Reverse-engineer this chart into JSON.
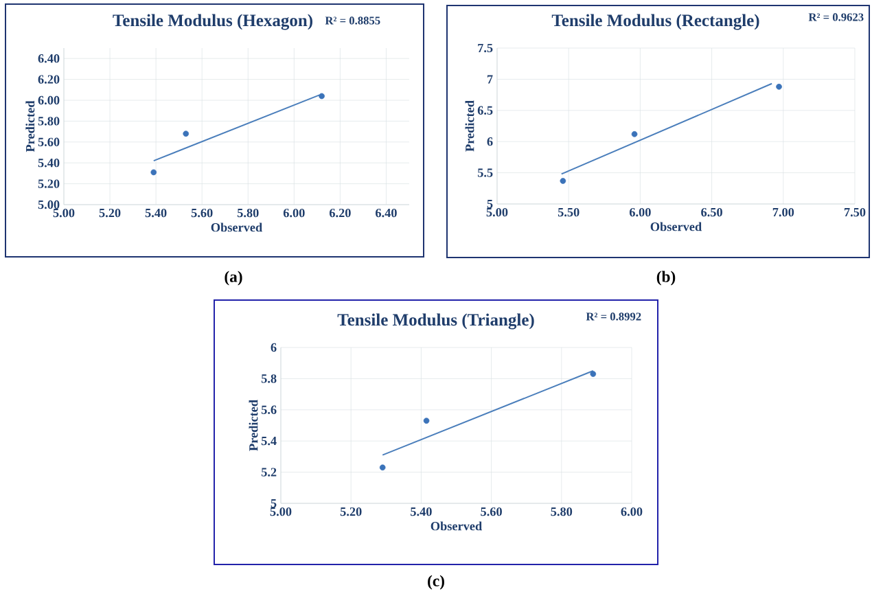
{
  "chart_data": [
    {
      "type": "scatter",
      "title": "Tensile Modulus (Hexagon)",
      "xlabel": "Observed",
      "ylabel": "Predicted",
      "annotations": [
        "R² = 0.8855",
        "(a)"
      ],
      "xlim": [
        5,
        6.5
      ],
      "ylim": [
        5,
        6.5
      ],
      "xticks": [
        {
          "value": 5,
          "label": "5.00"
        },
        {
          "value": 5.2,
          "label": "5.20"
        },
        {
          "value": 5.4,
          "label": "5.40"
        },
        {
          "value": 5.6,
          "label": "5.60"
        },
        {
          "value": 5.8,
          "label": "5.80"
        },
        {
          "value": 6,
          "label": "6.00"
        },
        {
          "value": 6.2,
          "label": "6.20"
        },
        {
          "value": 6.4,
          "label": "6.40"
        }
      ],
      "yticks": [
        {
          "value": 5,
          "label": "5.00"
        },
        {
          "value": 5.2,
          "label": "5.20"
        },
        {
          "value": 5.4,
          "label": "5.40"
        },
        {
          "value": 5.6,
          "label": "5.60"
        },
        {
          "value": 5.8,
          "label": "5.80"
        },
        {
          "value": 6,
          "label": "6.00"
        },
        {
          "value": 6.2,
          "label": "6.20"
        },
        {
          "value": 6.4,
          "label": "6.40"
        }
      ],
      "grid": true,
      "marker": "circle",
      "series": [
        {
          "color": "#3b73b9",
          "x": [
            5.39,
            5.53,
            6.12
          ],
          "values": [
            5.31,
            5.68,
            6.04
          ]
        },
        {
          "type": "line",
          "color": "#4a7ebb",
          "marker": "none",
          "x": [
            5.39,
            6.11
          ],
          "values": [
            5.42,
            6.05
          ]
        }
      ]
    },
    {
      "type": "scatter",
      "title": "Tensile Modulus (Rectangle)",
      "xlabel": "Observed",
      "ylabel": "Predicted",
      "annotations": [
        "R² = 0.9623",
        "(b)"
      ],
      "xlim": [
        5,
        7.5
      ],
      "ylim": [
        5,
        7.5
      ],
      "xticks": [
        {
          "value": 5,
          "label": "5.00"
        },
        {
          "value": 5.5,
          "label": "5.50"
        },
        {
          "value": 6,
          "label": "6.00"
        },
        {
          "value": 6.5,
          "label": "6.50"
        },
        {
          "value": 7,
          "label": "7.00"
        },
        {
          "value": 7.5,
          "label": "7.50"
        }
      ],
      "yticks": [
        5,
        5.5,
        6,
        6.5,
        7,
        7.5
      ],
      "grid": true,
      "marker": "circle",
      "series": [
        {
          "color": "#3b73b9",
          "x": [
            5.46,
            5.96,
            6.97
          ],
          "values": [
            5.37,
            6.12,
            6.88
          ]
        },
        {
          "type": "line",
          "color": "#4a7ebb",
          "marker": "none",
          "x": [
            5.45,
            6.92
          ],
          "values": [
            5.48,
            6.93
          ]
        }
      ]
    },
    {
      "type": "scatter",
      "title": "Tensile Modulus (Triangle)",
      "xlabel": "Observed",
      "ylabel": "Predicted",
      "annotations": [
        "R² = 0.8992",
        "(c)"
      ],
      "xlim": [
        5,
        6
      ],
      "ylim": [
        5,
        6
      ],
      "xticks": [
        {
          "value": 5,
          "label": "5.00"
        },
        {
          "value": 5.2,
          "label": "5.20"
        },
        {
          "value": 5.4,
          "label": "5.40"
        },
        {
          "value": 5.6,
          "label": "5.60"
        },
        {
          "value": 5.8,
          "label": "5.80"
        },
        {
          "value": 6,
          "label": "6.00"
        }
      ],
      "yticks": [
        5,
        5.2,
        5.4,
        5.6,
        5.8,
        6
      ],
      "grid": true,
      "marker": "circle",
      "series": [
        {
          "color": "#3b73b9",
          "x": [
            5.29,
            5.415,
            5.89
          ],
          "values": [
            5.23,
            5.53,
            5.83
          ]
        },
        {
          "type": "line",
          "color": "#4a7ebb",
          "marker": "none",
          "x": [
            5.29,
            5.89
          ],
          "values": [
            5.31,
            5.85
          ]
        }
      ]
    }
  ]
}
